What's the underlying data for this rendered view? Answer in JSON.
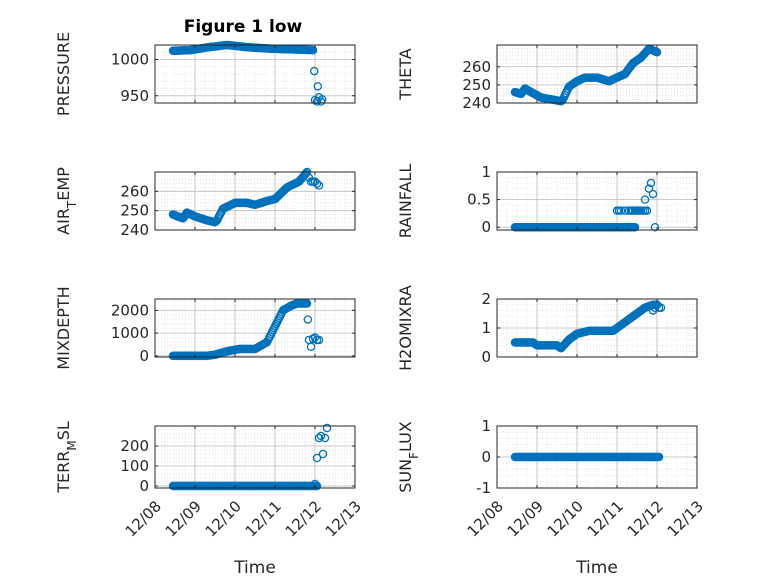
{
  "figure": {
    "title": "Figure 1 low",
    "marker_color": "#0072BD"
  },
  "chart_data": [
    {
      "type": "scatter",
      "ylabel": "PRESSURE",
      "xlabel": "",
      "title": "Figure 1 low",
      "ylim": [
        940,
        1020
      ],
      "yticks": [
        950,
        1000
      ],
      "ytick_labels": [
        "950",
        "1000"
      ],
      "xlim": [
        0,
        5
      ],
      "xticks": [
        0,
        1,
        2,
        3,
        4,
        5
      ],
      "x_start_date": "12/08",
      "segments": [
        {
          "x": [
            0.45,
            0.9,
            1.35,
            1.8,
            2.3,
            2.85,
            3.4,
            3.95
          ],
          "y": [
            1012,
            1013,
            1017,
            1020,
            1017,
            1015,
            1014,
            1013
          ],
          "step": 0.025
        }
      ],
      "points": {
        "x": [
          3.98,
          4.0,
          4.05,
          4.07,
          4.1,
          4.15,
          4.18
        ],
        "y": [
          984,
          944,
          942,
          963,
          948,
          942,
          945
        ]
      }
    },
    {
      "type": "scatter",
      "ylabel": "THETA",
      "xlabel": "",
      "ylim": [
        240,
        272
      ],
      "yticks": [
        240,
        250,
        260
      ],
      "ytick_labels": [
        "240",
        "250",
        "260"
      ],
      "xlim": [
        0,
        5
      ],
      "xticks": [
        0,
        1,
        2,
        3,
        4,
        5
      ],
      "x_start_date": "12/08",
      "segments": [
        {
          "x": [
            0.45,
            0.6,
            0.7,
            0.85,
            1.1,
            1.35,
            1.6,
            1.65,
            1.8,
            2.0,
            2.2,
            2.5,
            2.8,
            3.0,
            3.2,
            3.4,
            3.6,
            3.8,
            4.0
          ],
          "y": [
            246,
            245,
            248,
            246,
            243,
            242,
            241,
            242,
            249,
            252,
            254,
            254,
            252,
            254,
            256,
            262,
            265,
            270,
            268
          ],
          "step": 0.025
        }
      ],
      "points": {
        "x": [],
        "y": []
      }
    },
    {
      "type": "scatter",
      "ylabel": "AIR_TEMP",
      "xlabel": "",
      "ylim": [
        240,
        270
      ],
      "yticks": [
        240,
        250,
        260
      ],
      "ytick_labels": [
        "240",
        "250",
        "260"
      ],
      "xlim": [
        0,
        5
      ],
      "xticks": [
        0,
        1,
        2,
        3,
        4,
        5
      ],
      "x_start_date": "12/08",
      "segments": [
        {
          "x": [
            0.45,
            0.7,
            0.8,
            1.0,
            1.3,
            1.5,
            1.55,
            1.7,
            2.0,
            2.3,
            2.5,
            2.8,
            3.0,
            3.3,
            3.6,
            3.8
          ],
          "y": [
            248,
            246,
            249,
            247,
            245,
            244,
            245,
            251,
            254,
            254,
            253,
            255,
            256,
            262,
            265,
            270
          ],
          "step": 0.025
        }
      ],
      "points": {
        "x": [
          3.85,
          3.9,
          3.95,
          4.0,
          4.05,
          4.1
        ],
        "y": [
          267,
          265,
          265,
          265,
          264,
          263
        ]
      }
    },
    {
      "type": "scatter",
      "ylabel": "RAINFALL",
      "xlabel": "",
      "ylim": [
        -0.05,
        1.0
      ],
      "yticks": [
        0,
        0.5,
        1
      ],
      "ytick_labels": [
        "0",
        "0.5",
        "1"
      ],
      "xlim": [
        0,
        5
      ],
      "xticks": [
        0,
        1,
        2,
        3,
        4,
        5
      ],
      "x_start_date": "12/08",
      "segments": [
        {
          "x": [
            0.45,
            3.0
          ],
          "y": [
            0,
            0
          ],
          "step": 0.025
        },
        {
          "x": [
            3.05,
            3.45
          ],
          "y": [
            0,
            0
          ],
          "step": 0.025
        }
      ],
      "points": {
        "x": [
          3.0,
          3.05,
          3.1,
          3.2,
          3.3,
          3.35,
          3.4,
          3.45,
          3.5,
          3.55,
          3.6,
          3.65,
          3.7,
          3.7,
          3.75,
          3.8,
          3.85,
          3.9,
          3.95
        ],
        "y": [
          0.3,
          0.3,
          0.3,
          0.3,
          0.3,
          0.3,
          0.3,
          0.3,
          0.3,
          0.3,
          0.3,
          0.3,
          0.3,
          0.5,
          0.3,
          0.7,
          0.8,
          0.6,
          0.0
        ]
      }
    },
    {
      "type": "scatter",
      "ylabel": "MIXDEPTH",
      "xlabel": "",
      "ylim": [
        -50,
        2500
      ],
      "yticks": [
        0,
        1000,
        2000
      ],
      "ytick_labels": [
        "0",
        "1000",
        "2000"
      ],
      "xlim": [
        0,
        5
      ],
      "xticks": [
        0,
        1,
        2,
        3,
        4,
        5
      ],
      "x_start_date": "12/08",
      "segments": [
        {
          "x": [
            0.45,
            1.3,
            1.5,
            1.8,
            2.1,
            2.5,
            2.8,
            3.0,
            3.2,
            3.4,
            3.55,
            3.7,
            3.8
          ],
          "y": [
            0,
            0,
            50,
            200,
            300,
            300,
            600,
            1300,
            2000,
            2200,
            2300,
            2300,
            2300
          ],
          "step": 0.025
        }
      ],
      "points": {
        "x": [
          3.82,
          3.85,
          3.9,
          3.95,
          4.0,
          4.05,
          4.1
        ],
        "y": [
          1600,
          700,
          400,
          750,
          800,
          700,
          700
        ]
      }
    },
    {
      "type": "scatter",
      "ylabel": "H2OMIXRA",
      "xlabel": "",
      "ylim": [
        0,
        2
      ],
      "yticks": [
        0,
        1,
        2
      ],
      "ytick_labels": [
        "0",
        "1",
        "2"
      ],
      "xlim": [
        0,
        5
      ],
      "xticks": [
        0,
        1,
        2,
        3,
        4,
        5
      ],
      "x_start_date": "12/08",
      "segments": [
        {
          "x": [
            0.45,
            0.9,
            1.0,
            1.5,
            1.6,
            1.8,
            2.0,
            2.3,
            2.6,
            2.9,
            3.1,
            3.3,
            3.5,
            3.7,
            3.9,
            4.0
          ],
          "y": [
            0.5,
            0.5,
            0.4,
            0.4,
            0.3,
            0.6,
            0.8,
            0.9,
            0.9,
            0.9,
            1.1,
            1.3,
            1.5,
            1.7,
            1.8,
            1.8
          ],
          "step": 0.025
        }
      ],
      "points": {
        "x": [
          3.9,
          3.95,
          4.0,
          4.05,
          4.1
        ],
        "y": [
          1.6,
          1.7,
          1.8,
          1.7,
          1.7
        ]
      }
    },
    {
      "type": "scatter",
      "ylabel": "TERR_MSL",
      "xlabel": "Time",
      "ylim": [
        -10,
        300
      ],
      "yticks": [
        0,
        100,
        200
      ],
      "ytick_labels": [
        "0",
        "100",
        "200"
      ],
      "xlim": [
        0,
        5
      ],
      "xticks": [
        0,
        1,
        2,
        3,
        4,
        5
      ],
      "x_start_date": "12/08",
      "xtick_labels": [
        "12/08",
        "12/09",
        "12/10",
        "12/11",
        "12/12",
        "12/13"
      ],
      "segments": [
        {
          "x": [
            0.45,
            4.05
          ],
          "y": [
            0,
            0
          ],
          "step": 0.025
        }
      ],
      "points": {
        "x": [
          4.0,
          4.05,
          4.1,
          4.15,
          4.2,
          4.25,
          4.3
        ],
        "y": [
          10,
          140,
          240,
          250,
          160,
          240,
          290
        ]
      }
    },
    {
      "type": "scatter",
      "ylabel": "SUN_FLUX",
      "xlabel": "Time",
      "ylim": [
        -1,
        1
      ],
      "yticks": [
        -1,
        0,
        1
      ],
      "ytick_labels": [
        "-1",
        "0",
        "1"
      ],
      "xlim": [
        0,
        5
      ],
      "xticks": [
        0,
        1,
        2,
        3,
        4,
        5
      ],
      "x_start_date": "12/08",
      "xtick_labels": [
        "12/08",
        "12/09",
        "12/10",
        "12/11",
        "12/12",
        "12/13"
      ],
      "segments": [
        {
          "x": [
            0.45,
            4.05
          ],
          "y": [
            0,
            0
          ],
          "step": 0.025
        }
      ],
      "points": {
        "x": [],
        "y": []
      }
    }
  ]
}
